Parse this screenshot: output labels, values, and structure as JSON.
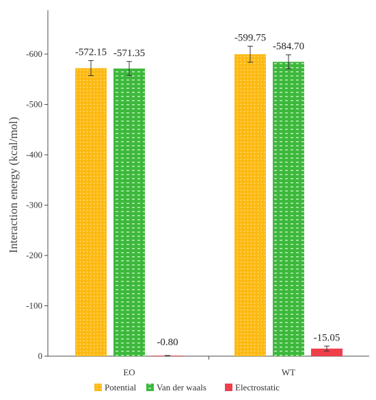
{
  "chart_data": {
    "type": "bar",
    "title": "",
    "xlabel": "",
    "ylabel": "Interaction energy (kcal/mol)",
    "categories": [
      "EO",
      "WT"
    ],
    "ylim": [
      0,
      -650
    ],
    "yticks": [
      0,
      -100,
      -200,
      -300,
      -400,
      -500,
      -600
    ],
    "ytick_labels": [
      "0",
      "-100",
      "-200",
      "-300",
      "-400",
      "-500",
      "-600"
    ],
    "legend_position": "bottom",
    "grid": false,
    "series": [
      {
        "name": "Potential",
        "color": "#FDB913",
        "pattern": "dots",
        "values": [
          -572.15,
          -599.75
        ],
        "errors": [
          15,
          16
        ],
        "labels": [
          "-572.15",
          "-599.75"
        ]
      },
      {
        "name": "Van der waals",
        "color": "#3DB83D",
        "pattern": "dashes",
        "values": [
          -571.35,
          -584.7
        ],
        "errors": [
          14,
          14
        ],
        "labels": [
          "-571.35",
          "-584.70"
        ]
      },
      {
        "name": "Electrostatic",
        "color": "#EF3F4A",
        "pattern": "solid",
        "values": [
          -0.8,
          -15.05
        ],
        "errors": [
          0.5,
          5
        ],
        "labels": [
          "-0.80",
          "-15.05"
        ]
      }
    ]
  }
}
